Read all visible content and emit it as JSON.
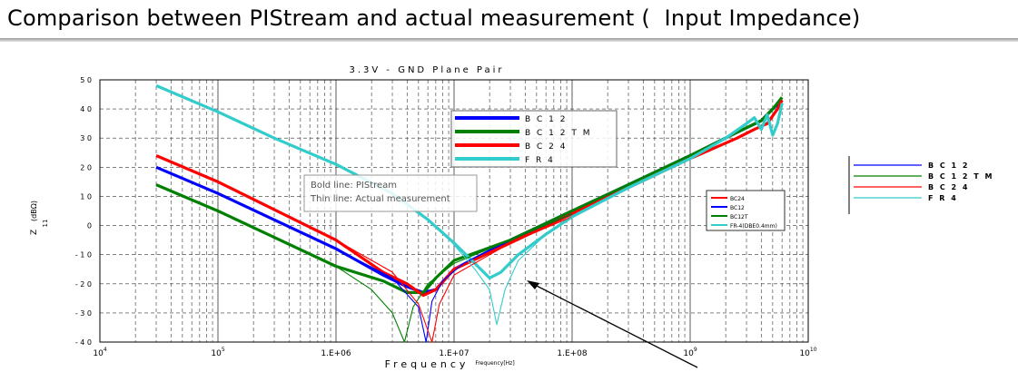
{
  "slide": {
    "title": "Comparison between PIStream and actual measurement (  Input Impedance)"
  },
  "chart_data": {
    "type": "line",
    "title": "3.3V - GND Plane Pair",
    "xlabel": "Frequency",
    "ylabel_main": "Z",
    "ylabel_sub": "11",
    "ylabel_unit": "(dBΩ)",
    "xscale": "log",
    "xlim": [
      10000,
      10000000000
    ],
    "ylim": [
      -40,
      50
    ],
    "x_ticks": [
      {
        "value": 10000,
        "base": "10",
        "exp": "4"
      },
      {
        "value": 100000,
        "base": "10",
        "exp": "5"
      },
      {
        "value": 1000000,
        "base": "1.E+06",
        "exp": ""
      },
      {
        "value": 10000000,
        "base": "1.E+07",
        "exp": ""
      },
      {
        "value": 100000000,
        "base": "1.E+08",
        "exp": ""
      },
      {
        "value": 1000000000,
        "base": "10",
        "exp": "9"
      },
      {
        "value": 10000000000,
        "base": "10",
        "exp": "10"
      }
    ],
    "y_ticks": [
      50,
      40,
      30,
      20,
      10,
      0,
      -10,
      -20,
      -30,
      -40
    ],
    "y_tick_labels": [
      "5 0",
      "4 0",
      "3 0",
      "2 0",
      "1 0",
      "0",
      "- 1 0",
      "- 2 0",
      "- 3 0",
      "- 4 0"
    ],
    "grid": true,
    "annotation_box": [
      "Bold line: PIStream",
      "Thin line: Actual measurement"
    ],
    "inner_axis_label": "Frequency[Hz]",
    "legend_main": [
      {
        "name": "B C 1 2",
        "color": "#0000ff"
      },
      {
        "name": "B C 1 2 T M",
        "color": "#008000"
      },
      {
        "name": "B C 2 4",
        "color": "#ff0000"
      },
      {
        "name": "F R 4",
        "color": "#33cccc"
      }
    ],
    "legend_inner": [
      {
        "name": "BC24",
        "color": "#ff0000"
      },
      {
        "name": "BC12",
        "color": "#0000ff"
      },
      {
        "name": "BC12T",
        "color": "#008000"
      },
      {
        "name": "FR-4(DBE0.4mm)",
        "color": "#33cccc"
      }
    ],
    "legend_right": [
      {
        "name": "B C 1 2",
        "color": "#0000ff"
      },
      {
        "name": "B C 1 2 T M",
        "color": "#008000"
      },
      {
        "name": "B C 2 4",
        "color": "#ff0000"
      },
      {
        "name": "F R 4",
        "color": "#33cccc"
      }
    ],
    "series": [
      {
        "name": "BC12 (PIStream)",
        "color": "#0000ff",
        "bold": true,
        "points": [
          [
            30000,
            20
          ],
          [
            100000,
            11
          ],
          [
            1000000,
            -8
          ],
          [
            2500000,
            -17
          ],
          [
            4000000,
            -21
          ],
          [
            5500000,
            -23
          ],
          [
            7000000,
            -22
          ],
          [
            10000000,
            -15
          ],
          [
            30000000,
            -5
          ],
          [
            100000000,
            5
          ],
          [
            300000000,
            14
          ],
          [
            1000000000,
            24
          ],
          [
            2500000000,
            32
          ],
          [
            4000000000,
            36
          ],
          [
            5000000000,
            40
          ],
          [
            6000000000,
            43
          ]
        ]
      },
      {
        "name": "BC12TM (PIStream)",
        "color": "#008000",
        "bold": true,
        "points": [
          [
            30000,
            14
          ],
          [
            100000,
            5
          ],
          [
            1000000,
            -14
          ],
          [
            2500000,
            -19
          ],
          [
            4000000,
            -23
          ],
          [
            5500000,
            -23
          ],
          [
            7000000,
            -18
          ],
          [
            10000000,
            -12
          ],
          [
            30000000,
            -5
          ],
          [
            100000000,
            5
          ],
          [
            300000000,
            14
          ],
          [
            1000000000,
            24
          ],
          [
            2500000000,
            32
          ],
          [
            4000000000,
            36
          ],
          [
            5000000000,
            40
          ],
          [
            6000000000,
            44
          ]
        ]
      },
      {
        "name": "BC24 (PIStream)",
        "color": "#ff0000",
        "bold": true,
        "points": [
          [
            30000,
            24
          ],
          [
            100000,
            15
          ],
          [
            1000000,
            -5
          ],
          [
            2500000,
            -16
          ],
          [
            4000000,
            -20
          ],
          [
            5500000,
            -24
          ],
          [
            7000000,
            -22
          ],
          [
            10000000,
            -15
          ],
          [
            30000000,
            -6
          ],
          [
            100000000,
            4
          ],
          [
            300000000,
            13
          ],
          [
            1000000000,
            23
          ],
          [
            2500000000,
            30
          ],
          [
            3500000000,
            33
          ],
          [
            4500000000,
            35
          ],
          [
            5500000000,
            40
          ],
          [
            6000000000,
            43
          ]
        ]
      },
      {
        "name": "FR4 (PIStream)",
        "color": "#33cccc",
        "bold": true,
        "points": [
          [
            30000,
            48
          ],
          [
            100000,
            39
          ],
          [
            300000,
            30
          ],
          [
            1000000,
            21
          ],
          [
            3000000,
            11
          ],
          [
            6000000,
            2
          ],
          [
            10000000,
            -6
          ],
          [
            15000000,
            -13
          ],
          [
            20000000,
            -18
          ],
          [
            25000000,
            -16
          ],
          [
            35000000,
            -10
          ],
          [
            60000000,
            -3
          ],
          [
            100000000,
            3
          ],
          [
            300000000,
            13
          ],
          [
            1000000000,
            23
          ],
          [
            2000000000,
            30
          ],
          [
            3000000000,
            35
          ],
          [
            3500000000,
            37
          ],
          [
            4000000000,
            33
          ],
          [
            4500000000,
            38
          ],
          [
            5000000000,
            31
          ],
          [
            5500000000,
            35
          ],
          [
            6000000000,
            42
          ]
        ]
      },
      {
        "name": "BC12 (measured)",
        "color": "#0000ff",
        "bold": false,
        "points": [
          [
            1000000,
            -8
          ],
          [
            3000000,
            -18
          ],
          [
            5000000,
            -28
          ],
          [
            5800000,
            -40
          ],
          [
            6500000,
            -26
          ],
          [
            8000000,
            -19
          ],
          [
            12000000,
            -13
          ],
          [
            30000000,
            -5
          ],
          [
            100000000,
            4
          ]
        ]
      },
      {
        "name": "BC12TM (measured)",
        "color": "#008000",
        "bold": false,
        "points": [
          [
            1000000,
            -14
          ],
          [
            2000000,
            -22
          ],
          [
            3000000,
            -30
          ],
          [
            3800000,
            -40
          ],
          [
            4500000,
            -28
          ],
          [
            6000000,
            -20
          ],
          [
            10000000,
            -13
          ],
          [
            30000000,
            -5
          ],
          [
            100000000,
            4
          ]
        ]
      },
      {
        "name": "BC24 (measured)",
        "color": "#ff0000",
        "bold": false,
        "points": [
          [
            1000000,
            -5
          ],
          [
            3000000,
            -16
          ],
          [
            5000000,
            -27
          ],
          [
            6500000,
            -40
          ],
          [
            7500000,
            -27
          ],
          [
            10000000,
            -17
          ],
          [
            30000000,
            -6
          ],
          [
            100000000,
            3
          ]
        ]
      },
      {
        "name": "FR4 (measured)",
        "color": "#33cccc",
        "bold": false,
        "points": [
          [
            3000000,
            11
          ],
          [
            8000000,
            -2
          ],
          [
            15000000,
            -15
          ],
          [
            20000000,
            -22
          ],
          [
            23000000,
            -34
          ],
          [
            27000000,
            -22
          ],
          [
            35000000,
            -12
          ],
          [
            60000000,
            -3
          ],
          [
            100000000,
            3
          ]
        ]
      }
    ]
  }
}
